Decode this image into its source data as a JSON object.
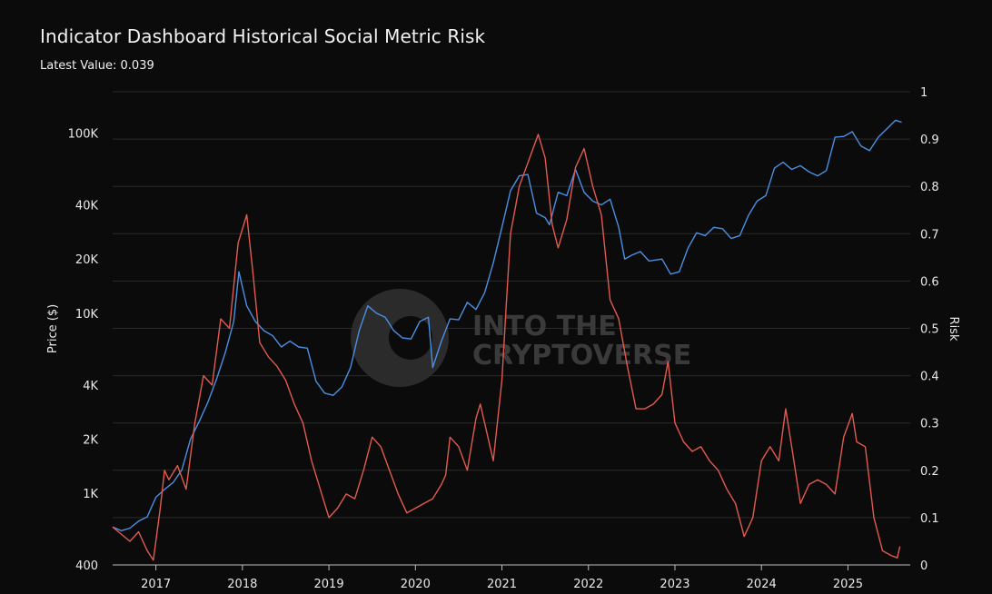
{
  "header": {
    "title": "Indicator Dashboard Historical Social Metric Risk",
    "latest_label": "Latest Value",
    "latest_value": "0.039"
  },
  "watermark": {
    "line1": "INTO THE",
    "line2": "CRYPTOVERSE"
  },
  "chart_data": {
    "type": "line",
    "title": "Indicator Dashboard Historical Social Metric Risk",
    "xlabel": "",
    "ylabel_left": "Price ($)",
    "ylabel_right": "Risk",
    "x_ticks": [
      "2017",
      "2018",
      "2019",
      "2020",
      "2021",
      "2022",
      "2023",
      "2024",
      "2025"
    ],
    "y_left_ticks": [
      "400",
      "1K",
      "2K",
      "4K",
      "10K",
      "20K",
      "40K",
      "100K"
    ],
    "y_left_tick_values": [
      400,
      1000,
      2000,
      4000,
      10000,
      20000,
      40000,
      100000
    ],
    "y_left_scale": "log",
    "y_left_range": [
      400,
      170000
    ],
    "y_right_ticks": [
      "0",
      "0.1",
      "0.2",
      "0.3",
      "0.4",
      "0.5",
      "0.6",
      "0.7",
      "0.8",
      "0.9",
      "1"
    ],
    "y_right_range": [
      0,
      1
    ],
    "x_range": [
      2016.5,
      2025.72
    ],
    "grid": true,
    "legend": "none",
    "series": [
      {
        "axis": "left",
        "color": "#4a90e2",
        "points": [
          [
            2016.5,
            650
          ],
          [
            2016.6,
            620
          ],
          [
            2016.7,
            640
          ],
          [
            2016.8,
            700
          ],
          [
            2016.9,
            740
          ],
          [
            2017.0,
            950
          ],
          [
            2017.1,
            1050
          ],
          [
            2017.2,
            1150
          ],
          [
            2017.3,
            1350
          ],
          [
            2017.4,
            2000
          ],
          [
            2017.5,
            2500
          ],
          [
            2017.6,
            3200
          ],
          [
            2017.7,
            4300
          ],
          [
            2017.8,
            6000
          ],
          [
            2017.9,
            9000
          ],
          [
            2017.96,
            17000
          ],
          [
            2018.05,
            11000
          ],
          [
            2018.15,
            9000
          ],
          [
            2018.25,
            8000
          ],
          [
            2018.35,
            7500
          ],
          [
            2018.45,
            6500
          ],
          [
            2018.55,
            7000
          ],
          [
            2018.65,
            6500
          ],
          [
            2018.75,
            6400
          ],
          [
            2018.85,
            4200
          ],
          [
            2018.95,
            3600
          ],
          [
            2019.05,
            3500
          ],
          [
            2019.15,
            3900
          ],
          [
            2019.25,
            5000
          ],
          [
            2019.35,
            8000
          ],
          [
            2019.45,
            11000
          ],
          [
            2019.55,
            10000
          ],
          [
            2019.65,
            9500
          ],
          [
            2019.75,
            8000
          ],
          [
            2019.85,
            7300
          ],
          [
            2019.95,
            7200
          ],
          [
            2020.05,
            9000
          ],
          [
            2020.15,
            9500
          ],
          [
            2020.2,
            5000
          ],
          [
            2020.3,
            7000
          ],
          [
            2020.4,
            9300
          ],
          [
            2020.5,
            9200
          ],
          [
            2020.6,
            11500
          ],
          [
            2020.7,
            10500
          ],
          [
            2020.8,
            13000
          ],
          [
            2020.9,
            19000
          ],
          [
            2021.0,
            30000
          ],
          [
            2021.1,
            48000
          ],
          [
            2021.2,
            58000
          ],
          [
            2021.3,
            59000
          ],
          [
            2021.4,
            36000
          ],
          [
            2021.5,
            34000
          ],
          [
            2021.55,
            31000
          ],
          [
            2021.65,
            47000
          ],
          [
            2021.75,
            45000
          ],
          [
            2021.85,
            63000
          ],
          [
            2021.95,
            47000
          ],
          [
            2022.05,
            42000
          ],
          [
            2022.15,
            40000
          ],
          [
            2022.25,
            43000
          ],
          [
            2022.35,
            30000
          ],
          [
            2022.42,
            20000
          ],
          [
            2022.5,
            21000
          ],
          [
            2022.6,
            22000
          ],
          [
            2022.7,
            19500
          ],
          [
            2022.85,
            20000
          ],
          [
            2022.95,
            16500
          ],
          [
            2023.05,
            17000
          ],
          [
            2023.15,
            23000
          ],
          [
            2023.25,
            28000
          ],
          [
            2023.35,
            27000
          ],
          [
            2023.45,
            30000
          ],
          [
            2023.55,
            29500
          ],
          [
            2023.65,
            26000
          ],
          [
            2023.75,
            27000
          ],
          [
            2023.85,
            35000
          ],
          [
            2023.95,
            42000
          ],
          [
            2024.05,
            45000
          ],
          [
            2024.15,
            64000
          ],
          [
            2024.25,
            69000
          ],
          [
            2024.35,
            63000
          ],
          [
            2024.45,
            66000
          ],
          [
            2024.55,
            61000
          ],
          [
            2024.65,
            58000
          ],
          [
            2024.75,
            62000
          ],
          [
            2024.85,
            95000
          ],
          [
            2024.95,
            96000
          ],
          [
            2025.05,
            102000
          ],
          [
            2025.15,
            85000
          ],
          [
            2025.25,
            80000
          ],
          [
            2025.35,
            95000
          ],
          [
            2025.45,
            106000
          ],
          [
            2025.55,
            118000
          ],
          [
            2025.62,
            115000
          ]
        ]
      },
      {
        "axis": "right",
        "color": "#e25a50",
        "points": [
          [
            2016.5,
            0.08
          ],
          [
            2016.7,
            0.05
          ],
          [
            2016.8,
            0.07
          ],
          [
            2016.9,
            0.03
          ],
          [
            2016.97,
            0.01
          ],
          [
            2017.05,
            0.12
          ],
          [
            2017.1,
            0.2
          ],
          [
            2017.15,
            0.18
          ],
          [
            2017.25,
            0.21
          ],
          [
            2017.35,
            0.16
          ],
          [
            2017.45,
            0.3
          ],
          [
            2017.55,
            0.4
          ],
          [
            2017.65,
            0.38
          ],
          [
            2017.75,
            0.52
          ],
          [
            2017.85,
            0.5
          ],
          [
            2017.95,
            0.68
          ],
          [
            2018.05,
            0.74
          ],
          [
            2018.12,
            0.62
          ],
          [
            2018.2,
            0.47
          ],
          [
            2018.3,
            0.44
          ],
          [
            2018.4,
            0.42
          ],
          [
            2018.5,
            0.39
          ],
          [
            2018.6,
            0.34
          ],
          [
            2018.7,
            0.3
          ],
          [
            2018.8,
            0.22
          ],
          [
            2018.9,
            0.16
          ],
          [
            2019.0,
            0.1
          ],
          [
            2019.1,
            0.12
          ],
          [
            2019.2,
            0.15
          ],
          [
            2019.3,
            0.14
          ],
          [
            2019.4,
            0.2
          ],
          [
            2019.5,
            0.27
          ],
          [
            2019.6,
            0.25
          ],
          [
            2019.7,
            0.2
          ],
          [
            2019.8,
            0.15
          ],
          [
            2019.9,
            0.11
          ],
          [
            2020.0,
            0.12
          ],
          [
            2020.1,
            0.13
          ],
          [
            2020.2,
            0.14
          ],
          [
            2020.3,
            0.17
          ],
          [
            2020.35,
            0.19
          ],
          [
            2020.4,
            0.27
          ],
          [
            2020.5,
            0.25
          ],
          [
            2020.6,
            0.2
          ],
          [
            2020.7,
            0.31
          ],
          [
            2020.75,
            0.34
          ],
          [
            2020.8,
            0.3
          ],
          [
            2020.9,
            0.22
          ],
          [
            2021.0,
            0.39
          ],
          [
            2021.05,
            0.55
          ],
          [
            2021.1,
            0.7
          ],
          [
            2021.2,
            0.8
          ],
          [
            2021.3,
            0.85
          ],
          [
            2021.42,
            0.91
          ],
          [
            2021.5,
            0.86
          ],
          [
            2021.58,
            0.72
          ],
          [
            2021.65,
            0.67
          ],
          [
            2021.75,
            0.73
          ],
          [
            2021.85,
            0.84
          ],
          [
            2021.95,
            0.88
          ],
          [
            2022.05,
            0.8
          ],
          [
            2022.15,
            0.74
          ],
          [
            2022.25,
            0.56
          ],
          [
            2022.35,
            0.52
          ],
          [
            2022.45,
            0.42
          ],
          [
            2022.55,
            0.33
          ],
          [
            2022.65,
            0.33
          ],
          [
            2022.75,
            0.34
          ],
          [
            2022.85,
            0.36
          ],
          [
            2022.92,
            0.43
          ],
          [
            2023.0,
            0.3
          ],
          [
            2023.1,
            0.26
          ],
          [
            2023.2,
            0.24
          ],
          [
            2023.3,
            0.25
          ],
          [
            2023.4,
            0.22
          ],
          [
            2023.5,
            0.2
          ],
          [
            2023.6,
            0.16
          ],
          [
            2023.7,
            0.13
          ],
          [
            2023.8,
            0.06
          ],
          [
            2023.9,
            0.1
          ],
          [
            2024.0,
            0.22
          ],
          [
            2024.1,
            0.25
          ],
          [
            2024.2,
            0.22
          ],
          [
            2024.28,
            0.33
          ],
          [
            2024.35,
            0.25
          ],
          [
            2024.45,
            0.13
          ],
          [
            2024.55,
            0.17
          ],
          [
            2024.65,
            0.18
          ],
          [
            2024.75,
            0.17
          ],
          [
            2024.85,
            0.15
          ],
          [
            2024.95,
            0.27
          ],
          [
            2025.05,
            0.32
          ],
          [
            2025.1,
            0.26
          ],
          [
            2025.2,
            0.25
          ],
          [
            2025.3,
            0.1
          ],
          [
            2025.4,
            0.03
          ],
          [
            2025.5,
            0.02
          ],
          [
            2025.57,
            0.015
          ],
          [
            2025.6,
            0.039
          ]
        ]
      }
    ]
  }
}
